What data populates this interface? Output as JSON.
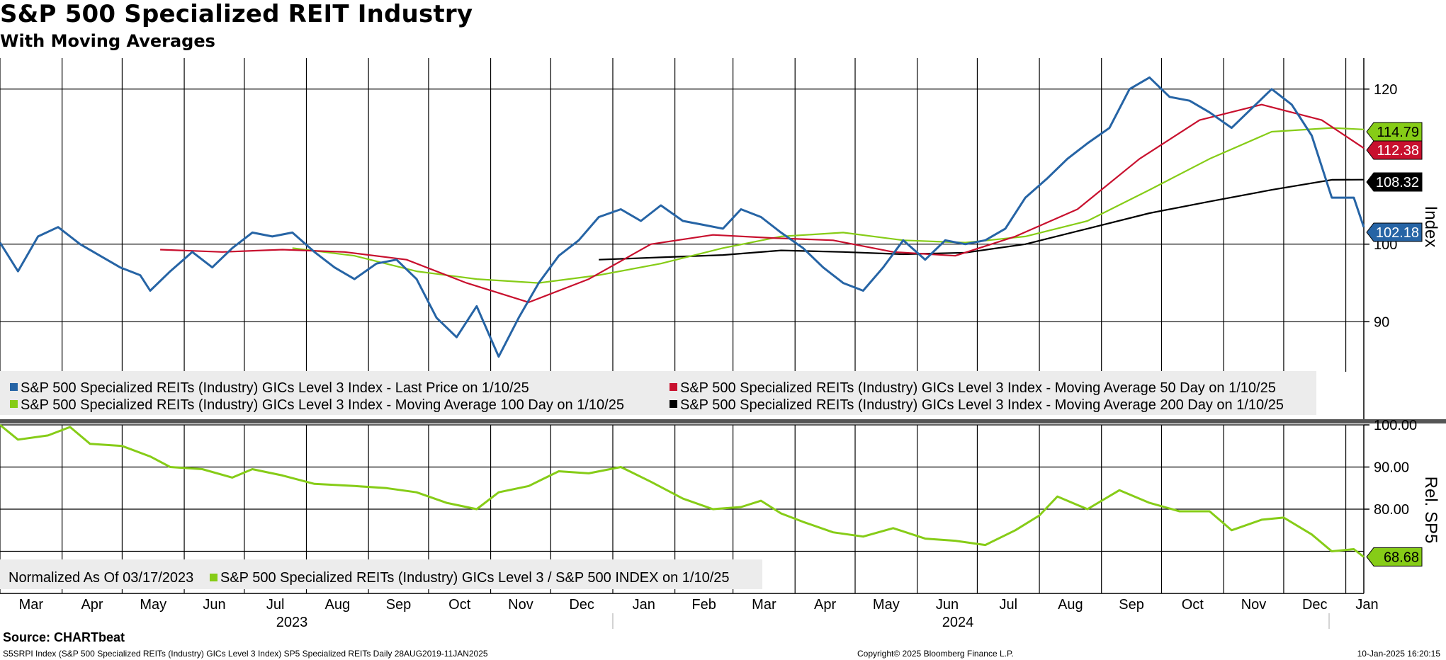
{
  "header": {
    "title": "S&P 500 Specialized REIT Industry",
    "subtitle": "With Moving Averages"
  },
  "footer": {
    "source": "Source: CHARTbeat",
    "left": "S5SRPI Index (S&P 500 Specialized REITs (Industry) GICs Level 3 Index) SP5 Specialized REITs  Daily 28AUG2019-11JAN2025",
    "center": "Copyright© 2025 Bloomberg Finance L.P.",
    "right": "10-Jan-2025 16:20:15"
  },
  "colors": {
    "last": "#2664a5",
    "ma50": "#c8102e",
    "ma100": "#86cc17",
    "ma200": "#000000",
    "rel": "#86cc17"
  },
  "chart_data": [
    {
      "type": "line",
      "panel": "upper",
      "y_axis_label": "Index",
      "ylim": [
        84,
        124
      ],
      "y_ticks": [
        90,
        100,
        120
      ],
      "x": [
        "2023-03-01",
        "2025-01-10"
      ],
      "x_month_ticks": [
        "Mar",
        "Apr",
        "May",
        "Jun",
        "Jul",
        "Aug",
        "Sep",
        "Oct",
        "Nov",
        "Dec",
        "Jan",
        "Feb",
        "Mar",
        "Apr",
        "May",
        "Jun",
        "Jul",
        "Aug",
        "Sep",
        "Oct",
        "Nov",
        "Dec",
        "Jan"
      ],
      "x_year_labels": [
        "2023",
        "2024"
      ],
      "legend": [
        {
          "key": "last",
          "label": "S&P 500 Specialized REITs (Industry) GICs Level 3 Index - Last Price on 1/10/25"
        },
        {
          "key": "ma50",
          "label": "S&P 500 Specialized REITs (Industry) GICs Level 3 Index - Moving Average 50 Day on 1/10/25"
        },
        {
          "key": "ma100",
          "label": "S&P 500 Specialized REITs (Industry) GICs Level 3 Index - Moving Average 100 Day on 1/10/25"
        },
        {
          "key": "ma200",
          "label": "S&P 500 Specialized REITs (Industry) GICs Level 3 Index - Moving Average 200 Day on 1/10/25"
        }
      ],
      "series": [
        {
          "key": "last",
          "last_label": "102.18",
          "points": [
            [
              "2023-03-01",
              100.2
            ],
            [
              "2023-03-10",
              96.5
            ],
            [
              "2023-03-20",
              101.0
            ],
            [
              "2023-03-30",
              102.2
            ],
            [
              "2023-04-10",
              100.0
            ],
            [
              "2023-04-20",
              98.5
            ],
            [
              "2023-04-30",
              97.0
            ],
            [
              "2023-05-10",
              96.0
            ],
            [
              "2023-05-15",
              94.0
            ],
            [
              "2023-05-25",
              96.5
            ],
            [
              "2023-06-05",
              99.0
            ],
            [
              "2023-06-15",
              97.0
            ],
            [
              "2023-06-25",
              99.5
            ],
            [
              "2023-07-05",
              101.5
            ],
            [
              "2023-07-15",
              101.0
            ],
            [
              "2023-07-25",
              101.5
            ],
            [
              "2023-08-05",
              99.0
            ],
            [
              "2023-08-15",
              97.0
            ],
            [
              "2023-08-25",
              95.5
            ],
            [
              "2023-09-05",
              97.5
            ],
            [
              "2023-09-15",
              98.0
            ],
            [
              "2023-09-25",
              95.5
            ],
            [
              "2023-10-05",
              90.5
            ],
            [
              "2023-10-15",
              88.0
            ],
            [
              "2023-10-25",
              92.0
            ],
            [
              "2023-11-05",
              85.5
            ],
            [
              "2023-11-15",
              90.5
            ],
            [
              "2023-11-25",
              95.0
            ],
            [
              "2023-12-05",
              98.5
            ],
            [
              "2023-12-15",
              100.5
            ],
            [
              "2023-12-25",
              103.5
            ],
            [
              "2024-01-05",
              104.5
            ],
            [
              "2024-01-15",
              103.0
            ],
            [
              "2024-01-25",
              105.0
            ],
            [
              "2024-02-05",
              103.0
            ],
            [
              "2024-02-15",
              102.5
            ],
            [
              "2024-02-25",
              102.0
            ],
            [
              "2024-03-05",
              104.5
            ],
            [
              "2024-03-15",
              103.5
            ],
            [
              "2024-03-25",
              101.5
            ],
            [
              "2024-04-05",
              99.5
            ],
            [
              "2024-04-15",
              97.0
            ],
            [
              "2024-04-25",
              95.0
            ],
            [
              "2024-05-05",
              94.0
            ],
            [
              "2024-05-15",
              97.0
            ],
            [
              "2024-05-25",
              100.5
            ],
            [
              "2024-06-05",
              98.0
            ],
            [
              "2024-06-15",
              100.5
            ],
            [
              "2024-06-25",
              100.0
            ],
            [
              "2024-07-05",
              100.5
            ],
            [
              "2024-07-15",
              102.0
            ],
            [
              "2024-07-25",
              106.0
            ],
            [
              "2024-08-05",
              108.5
            ],
            [
              "2024-08-15",
              111.0
            ],
            [
              "2024-08-25",
              113.0
            ],
            [
              "2024-09-05",
              115.0
            ],
            [
              "2024-09-15",
              120.0
            ],
            [
              "2024-09-25",
              121.5
            ],
            [
              "2024-10-05",
              119.0
            ],
            [
              "2024-10-15",
              118.5
            ],
            [
              "2024-10-25",
              117.0
            ],
            [
              "2024-11-05",
              115.0
            ],
            [
              "2024-11-15",
              117.5
            ],
            [
              "2024-11-25",
              120.0
            ],
            [
              "2024-12-05",
              118.0
            ],
            [
              "2024-12-15",
              114.0
            ],
            [
              "2024-12-25",
              106.0
            ],
            [
              "2025-01-05",
              106.0
            ],
            [
              "2025-01-10",
              102.18
            ]
          ]
        },
        {
          "key": "ma50",
          "last_label": "112.38",
          "points": [
            [
              "2023-05-20",
              99.3
            ],
            [
              "2023-06-20",
              99.0
            ],
            [
              "2023-07-20",
              99.3
            ],
            [
              "2023-08-20",
              99.0
            ],
            [
              "2023-09-20",
              98.0
            ],
            [
              "2023-10-20",
              95.0
            ],
            [
              "2023-11-20",
              92.5
            ],
            [
              "2023-12-20",
              95.5
            ],
            [
              "2024-01-20",
              100.0
            ],
            [
              "2024-02-20",
              101.2
            ],
            [
              "2024-03-20",
              100.8
            ],
            [
              "2024-04-20",
              100.5
            ],
            [
              "2024-05-20",
              99.0
            ],
            [
              "2024-06-20",
              98.5
            ],
            [
              "2024-07-20",
              101.0
            ],
            [
              "2024-08-20",
              104.5
            ],
            [
              "2024-09-20",
              111.0
            ],
            [
              "2024-10-20",
              116.0
            ],
            [
              "2024-11-20",
              118.0
            ],
            [
              "2024-12-20",
              116.0
            ],
            [
              "2025-01-10",
              112.38
            ]
          ]
        },
        {
          "key": "ma100",
          "last_label": "114.79",
          "points": [
            [
              "2023-07-25",
              99.5
            ],
            [
              "2023-08-25",
              98.5
            ],
            [
              "2023-09-25",
              96.5
            ],
            [
              "2023-10-25",
              95.5
            ],
            [
              "2023-11-25",
              95.0
            ],
            [
              "2023-12-25",
              96.0
            ],
            [
              "2024-01-25",
              97.5
            ],
            [
              "2024-02-25",
              99.5
            ],
            [
              "2024-03-25",
              101.0
            ],
            [
              "2024-04-25",
              101.5
            ],
            [
              "2024-05-25",
              100.5
            ],
            [
              "2024-06-25",
              100.2
            ],
            [
              "2024-07-25",
              101.0
            ],
            [
              "2024-08-25",
              103.0
            ],
            [
              "2024-09-25",
              107.0
            ],
            [
              "2024-10-25",
              111.0
            ],
            [
              "2024-11-25",
              114.5
            ],
            [
              "2024-12-25",
              115.0
            ],
            [
              "2025-01-10",
              114.79
            ]
          ]
        },
        {
          "key": "ma200",
          "last_label": "108.32",
          "points": [
            [
              "2023-12-25",
              98.0
            ],
            [
              "2024-01-25",
              98.3
            ],
            [
              "2024-02-25",
              98.6
            ],
            [
              "2024-03-25",
              99.2
            ],
            [
              "2024-04-25",
              99.0
            ],
            [
              "2024-05-25",
              98.7
            ],
            [
              "2024-06-25",
              98.9
            ],
            [
              "2024-07-25",
              100.0
            ],
            [
              "2024-08-25",
              102.0
            ],
            [
              "2024-09-25",
              104.0
            ],
            [
              "2024-10-25",
              105.5
            ],
            [
              "2024-11-25",
              107.0
            ],
            [
              "2024-12-25",
              108.3
            ],
            [
              "2025-01-10",
              108.32
            ]
          ]
        }
      ]
    },
    {
      "type": "line",
      "panel": "lower",
      "y_axis_label": "Rel. SP5",
      "ylim": [
        60,
        100
      ],
      "y_ticks": [
        "100.00",
        "90.00",
        "80.00"
      ],
      "legend_note": "Normalized As Of 03/17/2023",
      "legend": [
        {
          "key": "rel",
          "label": "S&P 500 Specialized REITs (Industry) GICs Level 3 / S&P 500 INDEX on 1/10/25"
        }
      ],
      "series": [
        {
          "key": "rel",
          "last_label": "68.68",
          "points": [
            [
              "2023-03-01",
              100.0
            ],
            [
              "2023-03-10",
              96.5
            ],
            [
              "2023-03-25",
              97.5
            ],
            [
              "2023-04-05",
              99.5
            ],
            [
              "2023-04-15",
              95.5
            ],
            [
              "2023-05-01",
              95.0
            ],
            [
              "2023-05-15",
              92.5
            ],
            [
              "2023-05-25",
              90.0
            ],
            [
              "2023-06-10",
              89.5
            ],
            [
              "2023-06-25",
              87.5
            ],
            [
              "2023-07-05",
              89.5
            ],
            [
              "2023-07-20",
              88.0
            ],
            [
              "2023-08-05",
              86.0
            ],
            [
              "2023-08-25",
              85.5
            ],
            [
              "2023-09-10",
              85.0
            ],
            [
              "2023-09-25",
              84.0
            ],
            [
              "2023-10-10",
              81.5
            ],
            [
              "2023-10-25",
              80.0
            ],
            [
              "2023-11-05",
              84.0
            ],
            [
              "2023-11-20",
              85.5
            ],
            [
              "2023-12-05",
              89.0
            ],
            [
              "2023-12-20",
              88.5
            ],
            [
              "2024-01-05",
              90.0
            ],
            [
              "2024-01-20",
              86.5
            ],
            [
              "2024-02-05",
              82.5
            ],
            [
              "2024-02-20",
              80.0
            ],
            [
              "2024-03-05",
              80.5
            ],
            [
              "2024-03-15",
              82.0
            ],
            [
              "2024-03-25",
              79.0
            ],
            [
              "2024-04-05",
              77.0
            ],
            [
              "2024-04-20",
              74.5
            ],
            [
              "2024-05-05",
              73.5
            ],
            [
              "2024-05-20",
              75.5
            ],
            [
              "2024-06-05",
              73.0
            ],
            [
              "2024-06-20",
              72.5
            ],
            [
              "2024-07-05",
              71.5
            ],
            [
              "2024-07-20",
              75.0
            ],
            [
              "2024-08-01",
              78.5
            ],
            [
              "2024-08-10",
              83.0
            ],
            [
              "2024-08-25",
              80.0
            ],
            [
              "2024-09-10",
              84.5
            ],
            [
              "2024-09-25",
              81.5
            ],
            [
              "2024-10-10",
              79.5
            ],
            [
              "2024-10-25",
              79.5
            ],
            [
              "2024-11-05",
              75.0
            ],
            [
              "2024-11-20",
              77.5
            ],
            [
              "2024-12-01",
              78.0
            ],
            [
              "2024-12-15",
              74.0
            ],
            [
              "2024-12-25",
              70.0
            ],
            [
              "2025-01-05",
              70.5
            ],
            [
              "2025-01-10",
              68.68
            ]
          ]
        }
      ]
    }
  ]
}
